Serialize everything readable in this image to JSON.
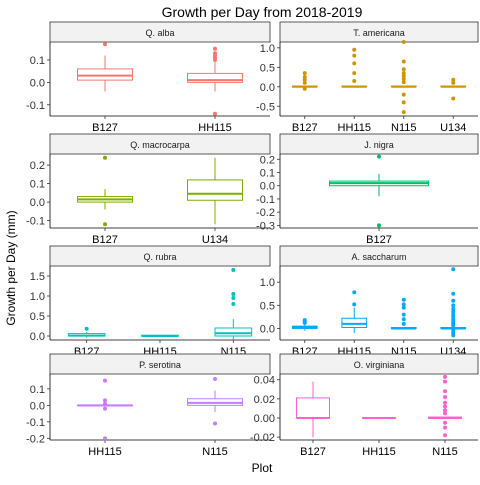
{
  "chart_data": {
    "type": "boxplot",
    "title": "Growth per Day from 2018-2019",
    "xlabel": "Plot",
    "ylabel": "Growth per Day (mm)",
    "facets": [
      {
        "species": "Q. alba",
        "color": "#F8766D",
        "ylim": [
          -0.15,
          0.18
        ],
        "yticks": [
          -0.1,
          0.0,
          0.1
        ],
        "categories": [
          "B127",
          "HH115"
        ],
        "boxes": [
          {
            "q1": 0.01,
            "median": 0.03,
            "q3": 0.06,
            "whisker_low": -0.04,
            "whisker_high": 0.12,
            "outliers": [
              0.17
            ]
          },
          {
            "q1": 0.0,
            "median": 0.01,
            "q3": 0.04,
            "whisker_low": -0.04,
            "whisker_high": 0.09,
            "outliers": [
              0.15,
              0.13,
              0.12,
              0.11,
              0.1,
              -0.14
            ]
          }
        ]
      },
      {
        "species": "T. americana",
        "color": "#CD9600",
        "ylim": [
          -0.75,
          1.15
        ],
        "yticks": [
          -0.5,
          0.0,
          0.5,
          1.0
        ],
        "categories": [
          "B127",
          "HH115",
          "N115",
          "U134"
        ],
        "boxes": [
          {
            "q1": 0.0,
            "median": 0.0,
            "q3": 0.02,
            "whisker_low": 0.0,
            "whisker_high": 0.03,
            "outliers": [
              0.35,
              0.25,
              0.18,
              0.1,
              -0.05
            ]
          },
          {
            "q1": 0.0,
            "median": 0.0,
            "q3": 0.02,
            "whisker_low": 0.0,
            "whisker_high": 0.03,
            "outliers": [
              0.95,
              0.8,
              0.6,
              0.35,
              0.15
            ]
          },
          {
            "q1": 0.0,
            "median": 0.0,
            "q3": 0.02,
            "whisker_low": 0.0,
            "whisker_high": 0.03,
            "outliers": [
              1.15,
              0.65,
              0.45,
              0.35,
              0.28,
              0.2,
              0.12,
              -0.2,
              -0.4,
              -0.65
            ]
          },
          {
            "q1": 0.0,
            "median": 0.0,
            "q3": 0.02,
            "whisker_low": 0.0,
            "whisker_high": 0.03,
            "outliers": [
              0.18,
              0.1,
              -0.3
            ]
          }
        ]
      },
      {
        "species": "Q. macrocarpa",
        "color": "#7CAE00",
        "ylim": [
          -0.14,
          0.26
        ],
        "yticks": [
          -0.1,
          0.0,
          0.1,
          0.2
        ],
        "categories": [
          "B127",
          "U134"
        ],
        "boxes": [
          {
            "q1": 0.0,
            "median": 0.015,
            "q3": 0.03,
            "whisker_low": -0.04,
            "whisker_high": 0.07,
            "outliers": [
              0.24,
              -0.12
            ]
          },
          {
            "q1": 0.01,
            "median": 0.045,
            "q3": 0.12,
            "whisker_low": -0.12,
            "whisker_high": 0.24,
            "outliers": []
          }
        ]
      },
      {
        "species": "J. nigra",
        "color": "#00BE67",
        "ylim": [
          -0.32,
          0.24
        ],
        "yticks": [
          -0.3,
          -0.2,
          -0.1,
          0.0,
          0.1,
          0.2
        ],
        "categories": [
          "B127"
        ],
        "boxes": [
          {
            "q1": 0.0,
            "median": 0.02,
            "q3": 0.035,
            "whisker_low": -0.08,
            "whisker_high": 0.09,
            "outliers": [
              0.22,
              -0.3
            ]
          }
        ]
      },
      {
        "species": "Q. rubra",
        "color": "#00BFC4",
        "ylim": [
          -0.1,
          1.75
        ],
        "yticks": [
          0.0,
          0.5,
          1.0,
          1.5
        ],
        "categories": [
          "B127",
          "HH115",
          "N115"
        ],
        "boxes": [
          {
            "q1": 0.0,
            "median": 0.01,
            "q3": 0.06,
            "whisker_low": -0.04,
            "whisker_high": 0.1,
            "outliers": [
              0.18
            ]
          },
          {
            "q1": 0.0,
            "median": 0.0,
            "q3": 0.02,
            "whisker_low": 0.0,
            "whisker_high": 0.03,
            "outliers": []
          },
          {
            "q1": 0.0,
            "median": 0.07,
            "q3": 0.2,
            "whisker_low": -0.1,
            "whisker_high": 0.42,
            "outliers": [
              1.65,
              1.05,
              0.95,
              0.8
            ]
          }
        ]
      },
      {
        "species": "A. saccharum",
        "color": "#00A9FF",
        "ylim": [
          -0.25,
          1.35
        ],
        "yticks": [
          0.0,
          0.5,
          1.0
        ],
        "categories": [
          "B127",
          "HH115",
          "N115",
          "U134"
        ],
        "boxes": [
          {
            "q1": 0.0,
            "median": 0.02,
            "q3": 0.05,
            "whisker_low": -0.05,
            "whisker_high": 0.09,
            "outliers": [
              0.18,
              0.15,
              0.12
            ]
          },
          {
            "q1": 0.02,
            "median": 0.1,
            "q3": 0.22,
            "whisker_low": -0.1,
            "whisker_high": 0.45,
            "outliers": [
              0.78,
              0.52
            ]
          },
          {
            "q1": 0.0,
            "median": 0.0,
            "q3": 0.02,
            "whisker_low": 0.0,
            "whisker_high": 0.03,
            "outliers": [
              0.62,
              0.52,
              0.45,
              0.3,
              0.2,
              0.1
            ]
          },
          {
            "q1": 0.0,
            "median": 0.0,
            "q3": 0.02,
            "whisker_low": 0.0,
            "whisker_high": 0.03,
            "outliers": [
              1.28,
              0.75,
              0.6,
              0.5,
              0.42,
              0.36,
              0.3,
              0.25,
              0.2,
              0.16,
              0.12,
              0.09,
              0.06,
              -0.05,
              -0.1,
              -0.15
            ]
          }
        ]
      },
      {
        "species": "P. serotina",
        "color": "#C77CFF",
        "ylim": [
          -0.21,
          0.19
        ],
        "yticks": [
          -0.2,
          -0.1,
          0.0,
          0.1
        ],
        "categories": [
          "HH115",
          "N115"
        ],
        "boxes": [
          {
            "q1": 0.0,
            "median": 0.0,
            "q3": 0.0,
            "whisker_low": 0.0,
            "whisker_high": 0.0,
            "outliers": [
              0.15,
              0.03,
              0.01,
              -0.02,
              -0.2
            ]
          },
          {
            "q1": 0.0,
            "median": 0.015,
            "q3": 0.04,
            "whisker_low": -0.04,
            "whisker_high": 0.09,
            "outliers": [
              0.16,
              -0.11
            ]
          }
        ]
      },
      {
        "species": "O. virginiana",
        "color": "#FF61CC",
        "ylim": [
          -0.023,
          0.046
        ],
        "yticks": [
          -0.02,
          0.0,
          0.02,
          0.04
        ],
        "categories": [
          "B127",
          "HH115",
          "N115"
        ],
        "boxes": [
          {
            "q1": 0.0,
            "median": 0.0,
            "q3": 0.021,
            "whisker_low": -0.02,
            "whisker_high": 0.038,
            "outliers": []
          },
          {
            "q1": 0.0,
            "median": 0.0,
            "q3": 0.0,
            "whisker_low": 0.0,
            "whisker_high": 0.0,
            "outliers": []
          },
          {
            "q1": 0.0,
            "median": 0.0,
            "q3": 0.001,
            "whisker_low": 0.0,
            "whisker_high": 0.001,
            "outliers": [
              0.043,
              0.038,
              0.028,
              0.022,
              0.016,
              0.012,
              0.008,
              0.005,
              -0.005,
              -0.01,
              -0.018
            ]
          }
        ]
      }
    ]
  }
}
